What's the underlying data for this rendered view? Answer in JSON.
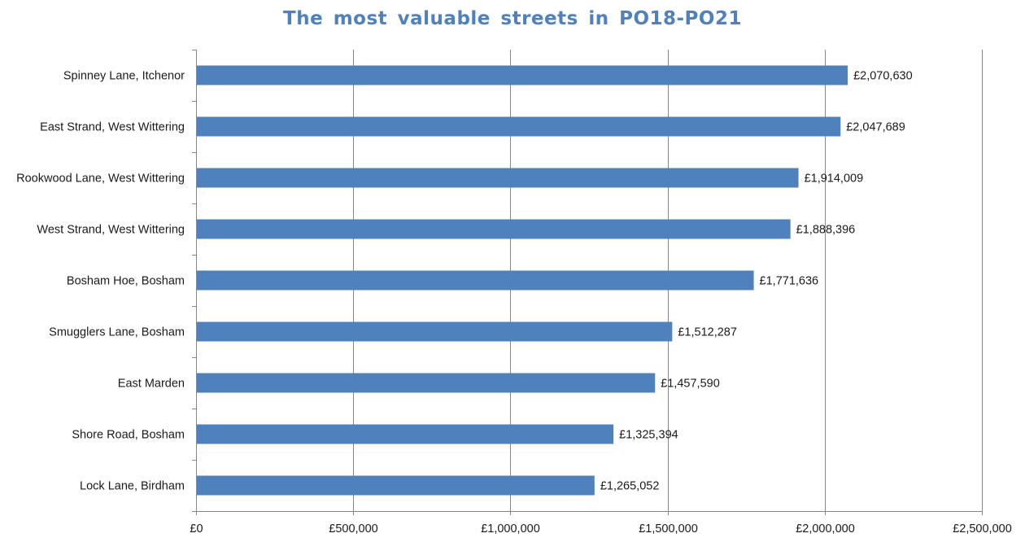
{
  "chart_data": {
    "type": "bar",
    "orientation": "horizontal",
    "title": "The most valuable streets in PO18-PO21",
    "xlabel": "",
    "ylabel": "",
    "xlim": [
      0,
      2500000
    ],
    "x_ticks": [
      0,
      500000,
      1000000,
      1500000,
      2000000,
      2500000
    ],
    "x_tick_labels": [
      "£0",
      "£500,000",
      "£1,000,000",
      "£1,500,000",
      "£2,000,000",
      "£2,500,000"
    ],
    "grid": "vertical major gridlines",
    "legend": "none",
    "bar_color": "#4f81bd",
    "title_color": "#4f81bd",
    "categories": [
      "Spinney Lane, Itchenor",
      "East Strand, West Wittering",
      "Rookwood Lane, West Wittering",
      "West Strand, West Wittering",
      "Bosham Hoe, Bosham",
      "Smugglers Lane, Bosham",
      "East Marden",
      "Shore Road, Bosham",
      "Lock Lane, Birdham"
    ],
    "values": [
      2070630,
      2047689,
      1914009,
      1888396,
      1771636,
      1512287,
      1457590,
      1325394,
      1265052
    ],
    "data_labels": [
      "£2,070,630",
      "£2,047,689",
      "£1,914,009",
      "£1,888,396",
      "£1,771,636",
      "£1,512,287",
      "£1,457,590",
      "£1,325,394",
      "£1,265,052"
    ]
  }
}
